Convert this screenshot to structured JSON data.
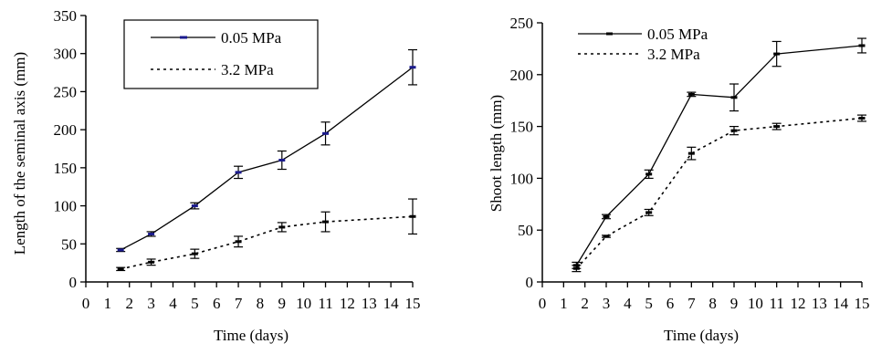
{
  "chart_data": [
    {
      "type": "line",
      "xlabel": "Time (days)",
      "ylabel": "Length of the seminal axis (mm)",
      "x_ticks": [
        "0",
        "1",
        "2",
        "3",
        "4",
        "5",
        "6",
        "7",
        "8",
        "9",
        "10",
        "11",
        "12",
        "13",
        "14",
        "15"
      ],
      "y_ticks": [
        "0",
        "50",
        "100",
        "150",
        "200",
        "250",
        "300",
        "350"
      ],
      "xlim": [
        0,
        15
      ],
      "ylim": [
        0,
        350
      ],
      "grid": false,
      "legend_position": "top-center",
      "series": [
        {
          "name": "0.05 MPa",
          "style": "solid",
          "x": [
            1.6,
            3,
            5,
            7,
            9,
            11,
            15
          ],
          "y": [
            42,
            63,
            100,
            144,
            160,
            195,
            282
          ],
          "err": [
            2,
            3,
            4,
            8,
            12,
            15,
            23
          ],
          "marker_color": "#1a1a8c"
        },
        {
          "name": "3.2 MPa",
          "style": "dotted",
          "x": [
            1.6,
            3,
            5,
            7,
            9,
            11,
            15
          ],
          "y": [
            17,
            26,
            37,
            53,
            72,
            79,
            86
          ],
          "err": [
            2,
            4,
            6,
            7,
            6,
            13,
            23
          ],
          "marker_color": "#000000"
        }
      ]
    },
    {
      "type": "line",
      "xlabel": "Time (days)",
      "ylabel": "Shoot length (mm)",
      "x_ticks": [
        "0",
        "1",
        "2",
        "3",
        "4",
        "5",
        "6",
        "7",
        "8",
        "9",
        "10",
        "11",
        "12",
        "13",
        "14",
        "15"
      ],
      "y_ticks": [
        "0",
        "50",
        "100",
        "150",
        "200",
        "250"
      ],
      "xlim": [
        0,
        15
      ],
      "ylim": [
        0,
        250
      ],
      "grid": false,
      "legend_position": "top-left",
      "series": [
        {
          "name": "0.05 MPa",
          "style": "solid",
          "x": [
            1.6,
            3,
            5,
            7,
            9,
            11,
            15
          ],
          "y": [
            16,
            63,
            104,
            181,
            178,
            220,
            228
          ],
          "err": [
            3,
            2,
            4,
            2,
            13,
            12,
            7
          ],
          "marker_color": "#000000"
        },
        {
          "name": "3.2 MPa",
          "style": "dotted",
          "x": [
            1.6,
            3,
            5,
            7,
            9,
            11,
            15
          ],
          "y": [
            13,
            44,
            67,
            124,
            146,
            150,
            158
          ],
          "err": [
            3,
            1,
            3,
            6,
            4,
            3,
            3
          ],
          "marker_color": "#000000"
        }
      ]
    }
  ]
}
